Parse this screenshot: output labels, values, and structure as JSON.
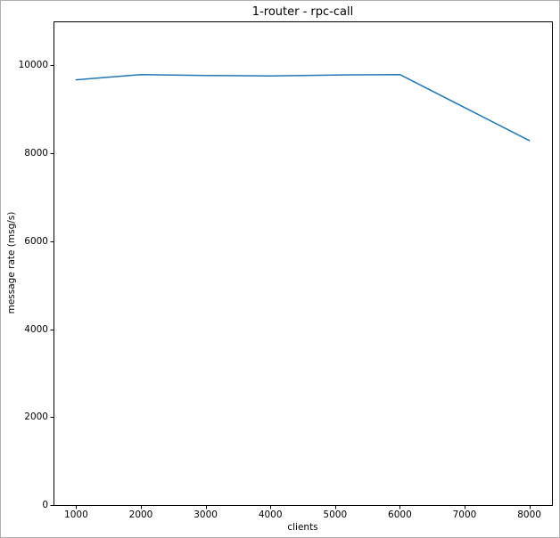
{
  "chart_data": {
    "type": "line",
    "title": "1-router - rpc-call",
    "xlabel": "clients",
    "ylabel": "message rate (msg/s)",
    "x": [
      1000,
      2000,
      3000,
      4000,
      5000,
      6000,
      8000
    ],
    "values": [
      9670,
      9790,
      9770,
      9760,
      9780,
      9790,
      8290
    ],
    "series": [
      {
        "name": "rpc-call message rate",
        "x": [
          1000,
          2000,
          3000,
          4000,
          5000,
          6000,
          8000
        ],
        "values": [
          9670,
          9790,
          9770,
          9760,
          9780,
          9790,
          8290
        ]
      }
    ],
    "xlim": [
      650,
      8350
    ],
    "ylim": [
      0,
      11000
    ],
    "xticks": [
      1000,
      2000,
      3000,
      4000,
      5000,
      6000,
      7000,
      8000
    ],
    "xtick_labels": [
      "1000",
      "2000",
      "3000",
      "4000",
      "5000",
      "6000",
      "7000",
      "8000"
    ],
    "yticks": [
      0,
      2000,
      4000,
      6000,
      8000,
      10000
    ],
    "ytick_labels": [
      "0",
      "2000",
      "4000",
      "6000",
      "8000",
      "10000"
    ],
    "line_color": "#1f77b4",
    "spine_color": "#000000",
    "background_color": "#ffffff",
    "grid": false,
    "legend": "none"
  }
}
